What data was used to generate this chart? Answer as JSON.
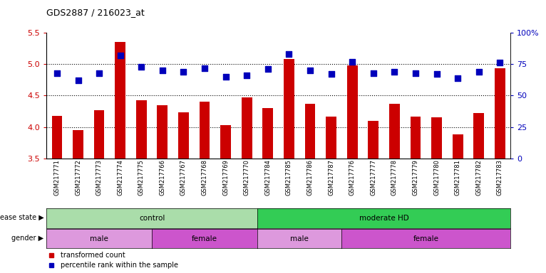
{
  "title": "GDS2887 / 216023_at",
  "samples": [
    "GSM217771",
    "GSM217772",
    "GSM217773",
    "GSM217774",
    "GSM217775",
    "GSM217766",
    "GSM217767",
    "GSM217768",
    "GSM217769",
    "GSM217770",
    "GSM217784",
    "GSM217785",
    "GSM217786",
    "GSM217787",
    "GSM217776",
    "GSM217777",
    "GSM217778",
    "GSM217779",
    "GSM217780",
    "GSM217781",
    "GSM217782",
    "GSM217783"
  ],
  "bar_values": [
    4.18,
    3.95,
    4.27,
    5.35,
    4.42,
    4.35,
    4.23,
    4.4,
    4.03,
    4.47,
    4.3,
    5.08,
    4.37,
    4.17,
    4.98,
    4.1,
    4.37,
    4.17,
    4.15,
    3.88,
    4.22,
    4.93
  ],
  "percentile_values": [
    68,
    62,
    68,
    82,
    73,
    70,
    69,
    72,
    65,
    66,
    71,
    83,
    70,
    67,
    77,
    68,
    69,
    68,
    67,
    64,
    69,
    76
  ],
  "ylim_left": [
    3.5,
    5.5
  ],
  "ylim_right": [
    0,
    100
  ],
  "yticks_left": [
    3.5,
    4.0,
    4.5,
    5.0,
    5.5
  ],
  "yticks_right": [
    0,
    25,
    50,
    75,
    100
  ],
  "ytick_labels_right": [
    "0",
    "25",
    "50",
    "75",
    "100%"
  ],
  "hlines": [
    4.0,
    4.5,
    5.0
  ],
  "bar_color": "#cc0000",
  "dot_color": "#0000bb",
  "disease_state_groups": [
    {
      "label": "control",
      "start": 0,
      "end": 10,
      "color": "#aaddaa"
    },
    {
      "label": "moderate HD",
      "start": 10,
      "end": 22,
      "color": "#33cc55"
    }
  ],
  "gender_groups": [
    {
      "label": "male",
      "start": 0,
      "end": 5,
      "color": "#dd99dd"
    },
    {
      "label": "female",
      "start": 5,
      "end": 10,
      "color": "#cc55cc"
    },
    {
      "label": "male",
      "start": 10,
      "end": 14,
      "color": "#dd99dd"
    },
    {
      "label": "female",
      "start": 14,
      "end": 22,
      "color": "#cc55cc"
    }
  ],
  "bar_width": 0.5,
  "dot_size": 35,
  "ylabel_left_color": "#cc0000",
  "ylabel_right_color": "#0000bb"
}
